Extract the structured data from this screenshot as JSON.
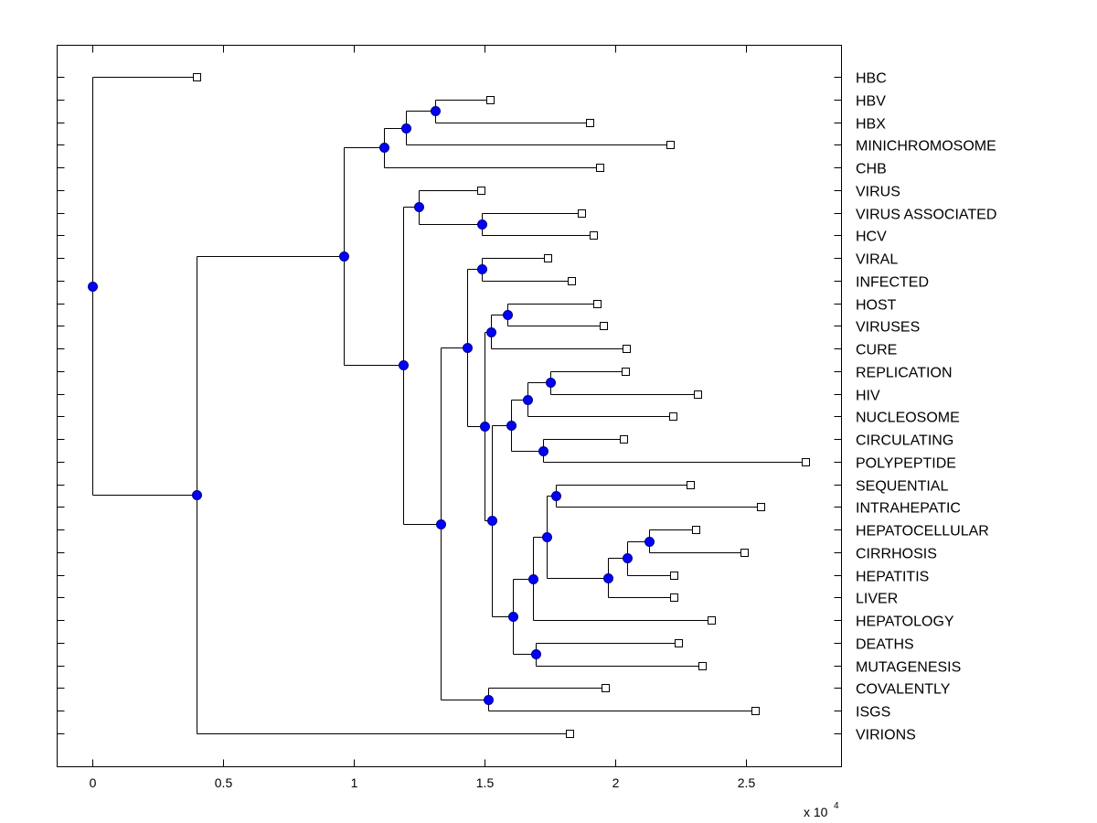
{
  "chart_data": {
    "type": "dendrogram",
    "title": "",
    "xlabel": "",
    "ylabel": "",
    "x_multiplier_label": "x 10",
    "x_multiplier_exponent": "4",
    "xlim": [
      -0.135,
      2.865
    ],
    "xticks": [
      0,
      0.5,
      1,
      1.5,
      2,
      2.5
    ],
    "xtick_labels": [
      "0",
      "0.5",
      "1",
      "1.5",
      "2",
      "2.5"
    ],
    "grid": false,
    "legend": "none",
    "leaf_marker": "open-square",
    "node_marker": "filled-circle",
    "node_color": "#0000ff",
    "line_color": "#000000",
    "leaves": [
      {
        "name": "HBC",
        "x": 0.399
      },
      {
        "name": "HBV",
        "x": 1.521
      },
      {
        "name": "HBX",
        "x": 1.902
      },
      {
        "name": "MINICHROMOSOME",
        "x": 2.21
      },
      {
        "name": "CHB",
        "x": 1.941
      },
      {
        "name": "VIRUS",
        "x": 1.486
      },
      {
        "name": "VIRUS ASSOCIATED",
        "x": 1.871
      },
      {
        "name": "HCV",
        "x": 1.916
      },
      {
        "name": "VIRAL",
        "x": 1.741
      },
      {
        "name": "INFECTED",
        "x": 1.832
      },
      {
        "name": "HOST",
        "x": 1.93
      },
      {
        "name": "VIRUSES",
        "x": 1.955
      },
      {
        "name": "CURE",
        "x": 2.042
      },
      {
        "name": "REPLICATION",
        "x": 2.038
      },
      {
        "name": "HIV",
        "x": 2.315
      },
      {
        "name": "NUCLEOSOME",
        "x": 2.22
      },
      {
        "name": "CIRCULATING",
        "x": 2.031
      },
      {
        "name": "POLYPEPTIDE",
        "x": 2.727
      },
      {
        "name": "SEQUENTIAL",
        "x": 2.287
      },
      {
        "name": "INTRAHEPATIC",
        "x": 2.556
      },
      {
        "name": "HEPATOCELLULAR",
        "x": 2.308
      },
      {
        "name": "CIRRHOSIS",
        "x": 2.493
      },
      {
        "name": "HEPATITIS",
        "x": 2.224
      },
      {
        "name": "LIVER",
        "x": 2.224
      },
      {
        "name": "HEPATOLOGY",
        "x": 2.367
      },
      {
        "name": "DEATHS",
        "x": 2.241
      },
      {
        "name": "MUTAGENESIS",
        "x": 2.332
      },
      {
        "name": "COVALENTLY",
        "x": 1.962
      },
      {
        "name": "ISGS",
        "x": 2.535
      },
      {
        "name": "VIRIONS",
        "x": 1.825
      }
    ],
    "nodes": [
      {
        "id": "n1",
        "x": 1.311,
        "children": [
          "HBV",
          "HBX"
        ]
      },
      {
        "id": "n2",
        "x": 1.199,
        "children": [
          "n1",
          "MINICHROMOSOME"
        ]
      },
      {
        "id": "n3",
        "x": 1.115,
        "children": [
          "n2",
          "CHB"
        ]
      },
      {
        "id": "n4",
        "x": 1.49,
        "children": [
          "VIRUS ASSOCIATED",
          "HCV"
        ]
      },
      {
        "id": "n5",
        "x": 1.248,
        "children": [
          "VIRUS",
          "n4"
        ]
      },
      {
        "id": "n6",
        "x": 1.49,
        "children": [
          "VIRAL",
          "INFECTED"
        ]
      },
      {
        "id": "n7",
        "x": 1.587,
        "children": [
          "HOST",
          "VIRUSES"
        ]
      },
      {
        "id": "n8",
        "x": 1.524,
        "children": [
          "n7",
          "CURE"
        ]
      },
      {
        "id": "n9",
        "x": 1.752,
        "children": [
          "REPLICATION",
          "HIV"
        ]
      },
      {
        "id": "n10",
        "x": 1.664,
        "children": [
          "n9",
          "NUCLEOSOME"
        ]
      },
      {
        "id": "n11",
        "x": 1.724,
        "children": [
          "CIRCULATING",
          "POLYPEPTIDE"
        ]
      },
      {
        "id": "n12",
        "x": 1.601,
        "children": [
          "n10",
          "n11"
        ]
      },
      {
        "id": "n13",
        "x": 1.773,
        "children": [
          "SEQUENTIAL",
          "INTRAHEPATIC"
        ]
      },
      {
        "id": "n14",
        "x": 2.129,
        "children": [
          "HEPATOCELLULAR",
          "CIRRHOSIS"
        ]
      },
      {
        "id": "n15",
        "x": 2.045,
        "children": [
          "n14",
          "HEPATITIS"
        ]
      },
      {
        "id": "n16",
        "x": 1.972,
        "children": [
          "n15",
          "LIVER"
        ]
      },
      {
        "id": "n17",
        "x": 1.738,
        "children": [
          "n13",
          "n16"
        ]
      },
      {
        "id": "n18",
        "x": 1.685,
        "children": [
          "n17",
          "HEPATOLOGY"
        ]
      },
      {
        "id": "n19",
        "x": 1.696,
        "children": [
          "DEATHS",
          "MUTAGENESIS"
        ]
      },
      {
        "id": "n20",
        "x": 1.608,
        "children": [
          "n18",
          "n19"
        ]
      },
      {
        "id": "n21",
        "x": 1.528,
        "children": [
          "n12",
          "n20"
        ]
      },
      {
        "id": "n22",
        "x": 1.5,
        "children": [
          "n8",
          "n21"
        ]
      },
      {
        "id": "n23",
        "x": 1.434,
        "children": [
          "n6",
          "n22"
        ]
      },
      {
        "id": "n24",
        "x": 1.514,
        "children": [
          "COVALENTLY",
          "ISGS"
        ]
      },
      {
        "id": "n25",
        "x": 1.332,
        "children": [
          "n23",
          "n24"
        ]
      },
      {
        "id": "n26",
        "x": 1.189,
        "children": [
          "n5",
          "n25"
        ]
      },
      {
        "id": "n27",
        "x": 0.962,
        "children": [
          "n3",
          "n26"
        ]
      },
      {
        "id": "n28",
        "x": 0.399,
        "children": [
          "n27",
          "VIRIONS"
        ]
      },
      {
        "id": "n29",
        "x": 0.0,
        "children": [
          "HBC",
          "n28"
        ]
      }
    ]
  }
}
